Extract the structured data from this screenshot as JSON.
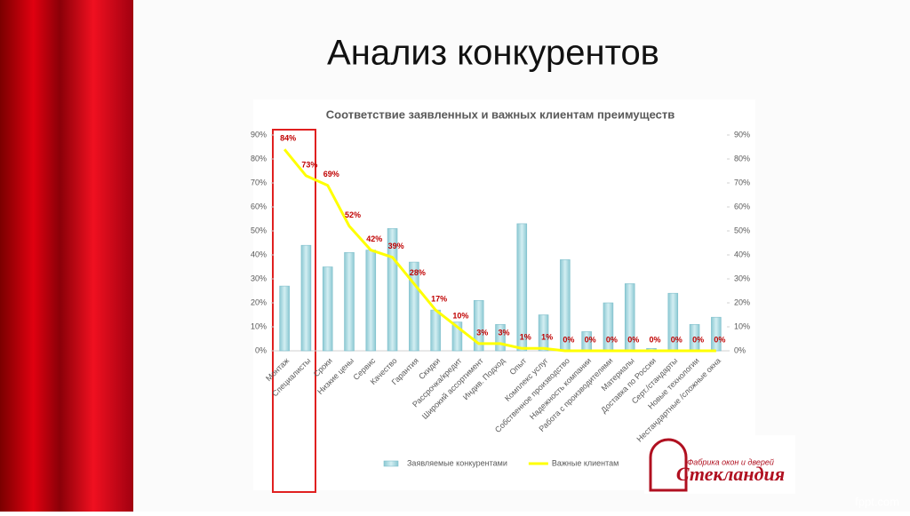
{
  "slide": {
    "title": "Анализ конкурентов",
    "logo_tagline": "Фабрика окон и дверей",
    "logo_name": "Стекландия",
    "watermark": "fppt.com"
  },
  "chart_data": {
    "type": "bar-line",
    "title": "Соответствие заявленных и важных клиентам преимуществ",
    "categories": [
      "Монтаж",
      "Специалисты",
      "Сроки",
      "Низкие цены",
      "Сервис",
      "Качество",
      "Гарантия",
      "Скидки",
      "Рассрочка/кредит",
      "Широкий ассортимент",
      "Индив. Подход",
      "Опыт",
      "Комплекс услуг",
      "Собственное производство",
      "Надежность компании",
      "Работа с производителями",
      "Материалы",
      "Доставка по России",
      "Серт./стандарты",
      "Новые технологии",
      "Нестандартные /сложные окна"
    ],
    "series": [
      {
        "name": "Заявляемые конкурентами",
        "type": "bar",
        "color": "#a8d8df",
        "values": [
          27,
          44,
          35,
          41,
          42,
          51,
          37,
          17,
          12,
          21,
          11,
          53,
          15,
          38,
          8,
          20,
          28,
          1,
          24,
          11,
          14
        ]
      },
      {
        "name": "Важные клиентам",
        "type": "line",
        "axis": "y2",
        "color": "#ffff00",
        "values": [
          84,
          73,
          69,
          52,
          42,
          39,
          28,
          17,
          10,
          3,
          3,
          1,
          1,
          0,
          0,
          0,
          0,
          0,
          0,
          0,
          0
        ],
        "value_labels": [
          "84%",
          "73%",
          "69%",
          "52%",
          "42%",
          "39%",
          "28%",
          "17%",
          "10%",
          "3%",
          "3%",
          "1%",
          "1%",
          "0%",
          "0%",
          "0%",
          "0%",
          "0%",
          "0%",
          "0%",
          "0%"
        ],
        "label_color": "#c00000"
      }
    ],
    "ylim": [
      0,
      90
    ],
    "yticks": [
      {
        "value": 0,
        "label": "0%"
      },
      {
        "value": 10,
        "label": "10%"
      },
      {
        "value": 20,
        "label": "20%"
      },
      {
        "value": 30,
        "label": "30%"
      },
      {
        "value": 40,
        "label": "40%"
      },
      {
        "value": 50,
        "label": "50%"
      },
      {
        "value": 60,
        "label": "60%"
      },
      {
        "value": 70,
        "label": "70%"
      },
      {
        "value": 80,
        "label": "80%"
      },
      {
        "value": 90,
        "label": "90%"
      }
    ],
    "y2lim": [
      0,
      90
    ],
    "y2ticks": [
      {
        "value": 0,
        "label": "0%"
      },
      {
        "value": 10,
        "label": "10%"
      },
      {
        "value": 20,
        "label": "20%"
      },
      {
        "value": 30,
        "label": "30%"
      },
      {
        "value": 40,
        "label": "40%"
      },
      {
        "value": 50,
        "label": "50%"
      },
      {
        "value": 60,
        "label": "60%"
      },
      {
        "value": 70,
        "label": "70%"
      },
      {
        "value": 80,
        "label": "80%"
      },
      {
        "value": 90,
        "label": "90%"
      }
    ],
    "legend": "bottom"
  }
}
